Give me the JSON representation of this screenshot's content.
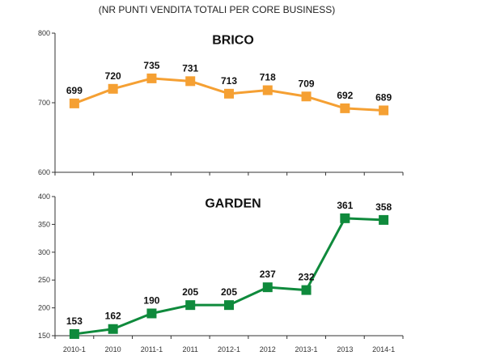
{
  "chart_data": [
    {
      "type": "line",
      "header": "(NR PUNTI VENDITA TOTALI PER CORE BUSINESS)",
      "title": "BRICO",
      "categories": [
        "2010-1",
        "2010",
        "2011-1",
        "2011",
        "2012-1",
        "2012",
        "2013-1",
        "2013",
        "2014-1"
      ],
      "values": [
        699,
        720,
        735,
        731,
        713,
        718,
        709,
        692,
        689
      ],
      "ylim": [
        600,
        800
      ],
      "yticks": [
        600,
        700,
        800
      ],
      "color": "#f5a033",
      "show_xticklabels": false,
      "grid": false
    },
    {
      "type": "line",
      "title": "GARDEN",
      "categories": [
        "2010-1",
        "2010",
        "2011-1",
        "2011",
        "2012-1",
        "2012",
        "2013-1",
        "2013",
        "2014-1"
      ],
      "values": [
        153,
        162,
        190,
        205,
        205,
        237,
        232,
        361,
        358
      ],
      "ylim": [
        150,
        400
      ],
      "yticks": [
        150,
        200,
        250,
        300,
        350,
        400
      ],
      "color": "#0f8a3c",
      "show_xticklabels": true,
      "grid": false
    }
  ]
}
